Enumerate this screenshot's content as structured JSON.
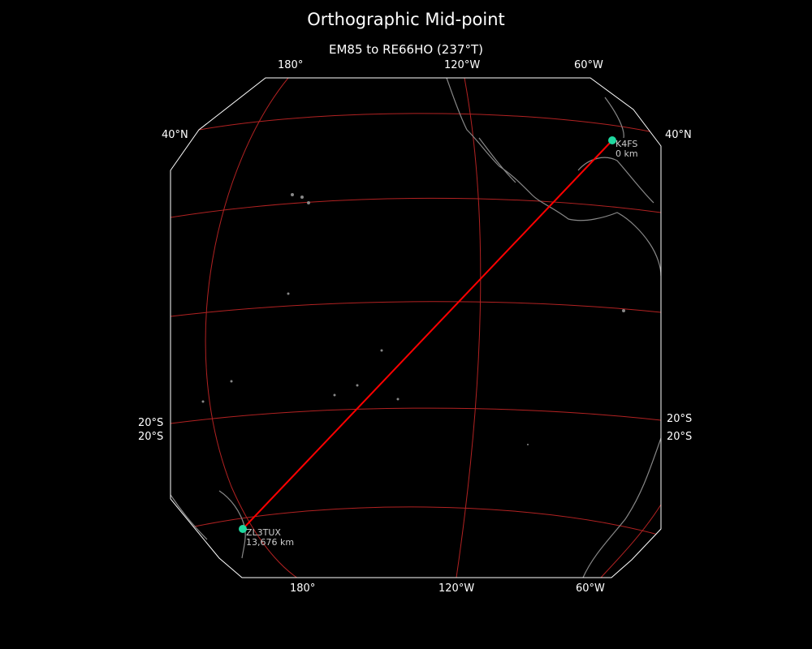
{
  "title": "Orthographic Mid-point",
  "subtitle": "EM85 to RE66HO (237°T)",
  "labels": {
    "top": [
      "180°",
      "120°W",
      "60°W"
    ],
    "bottom": [
      "180°",
      "120°W",
      "60°W"
    ],
    "left": [
      "40°N",
      "20°S",
      "20°S"
    ],
    "right": [
      "40°N",
      "20°S",
      "20°S"
    ]
  },
  "stations": [
    {
      "call": "K4FS",
      "distance": "0 km"
    },
    {
      "call": "ZL3TUX",
      "distance": "13,676 km"
    }
  ],
  "colors": {
    "path": "#ff0000",
    "graticule": "#b22222",
    "station": "#20d8a0",
    "coast": "#888888",
    "border": "#ffffff"
  }
}
